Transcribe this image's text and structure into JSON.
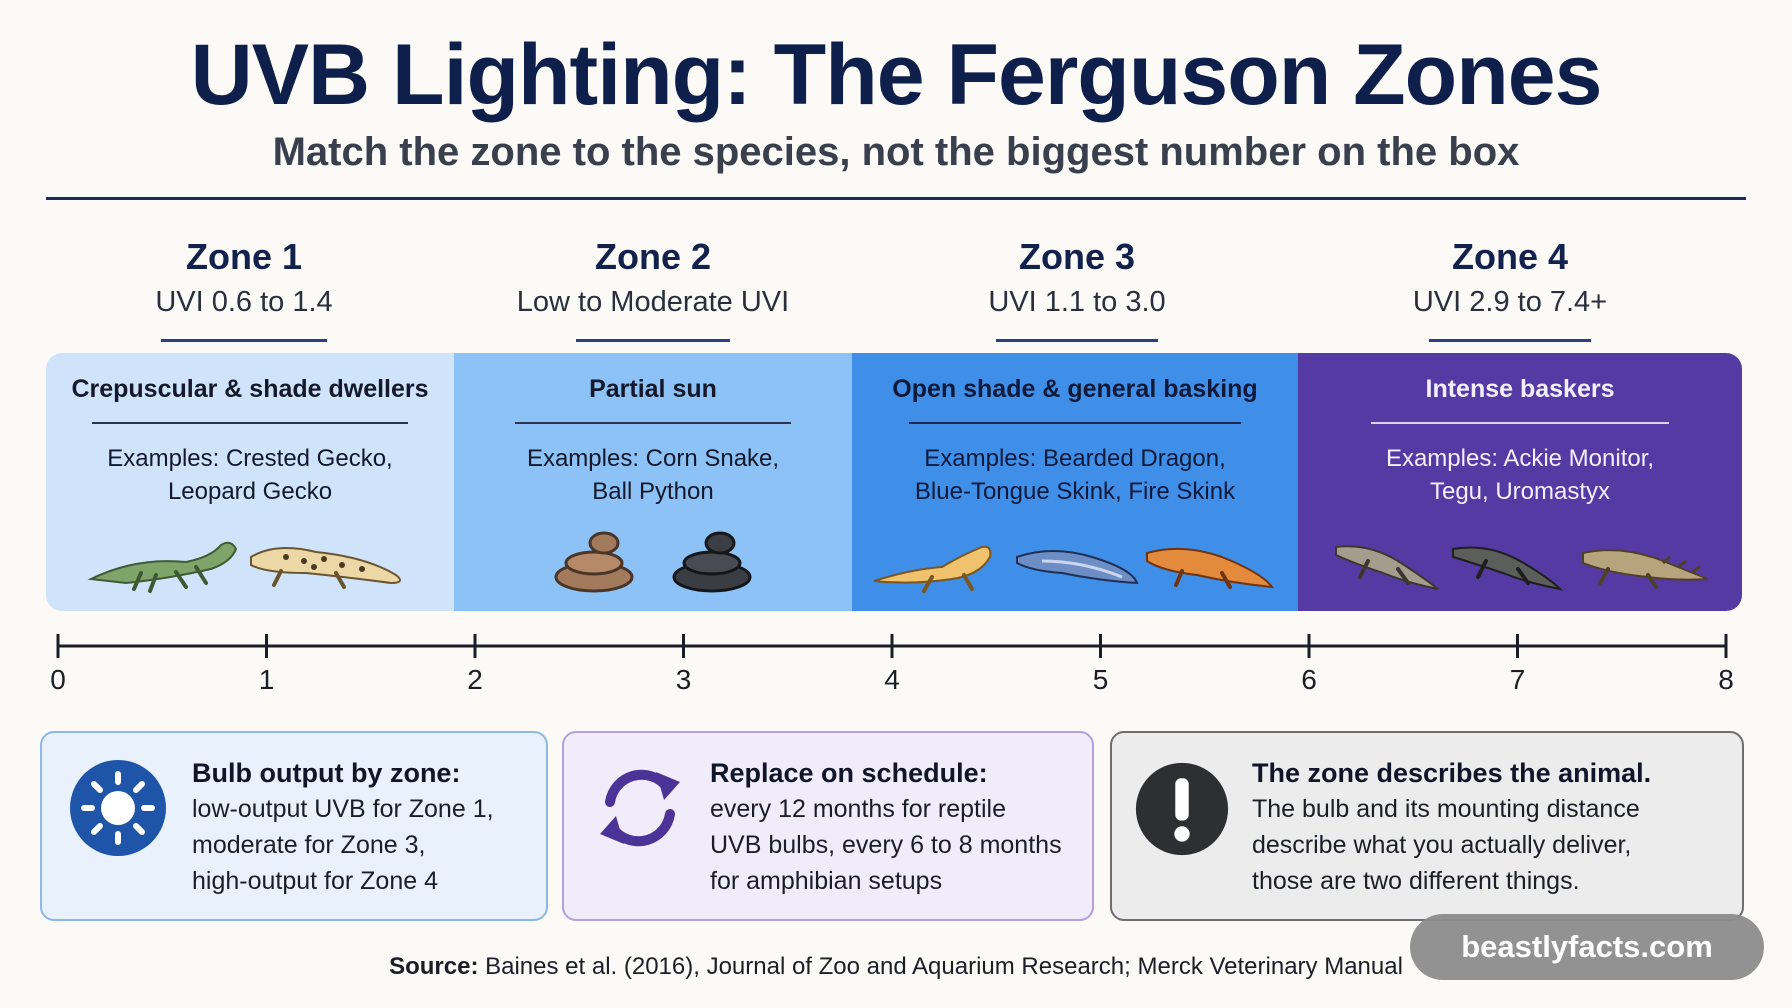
{
  "title": "UVB Lighting: The Ferguson Zones",
  "subtitle": "Match the zone to the species, not the biggest number on the box",
  "zones": [
    {
      "name": "Zone 1",
      "uvi": "UVI 0.6 to 1.4",
      "description": "Crepuscular & shade dwellers",
      "examples_line1": "Examples: Crested Gecko,",
      "examples_line2": "Leopard Gecko",
      "color": "#cfe4fb",
      "text_color": "#14182a"
    },
    {
      "name": "Zone 2",
      "uvi": "Low to Moderate UVI",
      "description": "Partial sun",
      "examples_line1": "Examples: Corn Snake,",
      "examples_line2": "Ball Python",
      "color": "#8cc2f6",
      "text_color": "#14182a"
    },
    {
      "name": "Zone 3",
      "uvi": "UVI 1.1 to 3.0",
      "description": "Open shade & general basking",
      "examples_line1": "Examples: Bearded Dragon,",
      "examples_line2": "Blue-Tongue Skink, Fire Skink",
      "color": "#3f8ee8",
      "text_color": "#0f1a3a"
    },
    {
      "name": "Zone 4",
      "uvi": "UVI 2.9 to 7.4+",
      "description": "Intense baskers",
      "examples_line1": "Examples: Ackie Monitor,",
      "examples_line2": "Tegu, Uromastyx",
      "color": "#553aa4",
      "text_color": "#f2efff"
    }
  ],
  "axis": {
    "min": 0,
    "max": 8,
    "ticks": [
      "0",
      "1",
      "2",
      "3",
      "4",
      "5",
      "6",
      "7",
      "8"
    ],
    "band_boundaries": [
      0,
      1.9,
      3.8,
      5.95,
      8
    ]
  },
  "cards": [
    {
      "heading": "Bulb output by zone:",
      "lines": [
        "low-output UVB for Zone 1,",
        "moderate for Zone 3,",
        "high-output for Zone 4"
      ],
      "icon": "sun-icon",
      "bg": "#e9f2fc",
      "border": "#8db7e6"
    },
    {
      "heading": "Replace on schedule:",
      "lines": [
        "every 12 months for reptile",
        "UVB bulbs, every 6 to 8 months",
        "for amphibian setups"
      ],
      "icon": "refresh-icon",
      "bg": "#f1ecfa",
      "border": "#b69ee0"
    },
    {
      "heading": "The zone describes the animal.",
      "lines": [
        "The bulb and its mounting distance",
        "describe what you actually deliver,",
        "those are two different things."
      ],
      "icon": "exclamation-icon",
      "bg": "#ececed",
      "border": "#6d6d72"
    }
  ],
  "source": {
    "label": "Source:",
    "text": "Baines et al. (2016), Journal of Zoo and Aquarium Research; Merck Veterinary Manual"
  },
  "watermark": "beastlyfacts.com"
}
